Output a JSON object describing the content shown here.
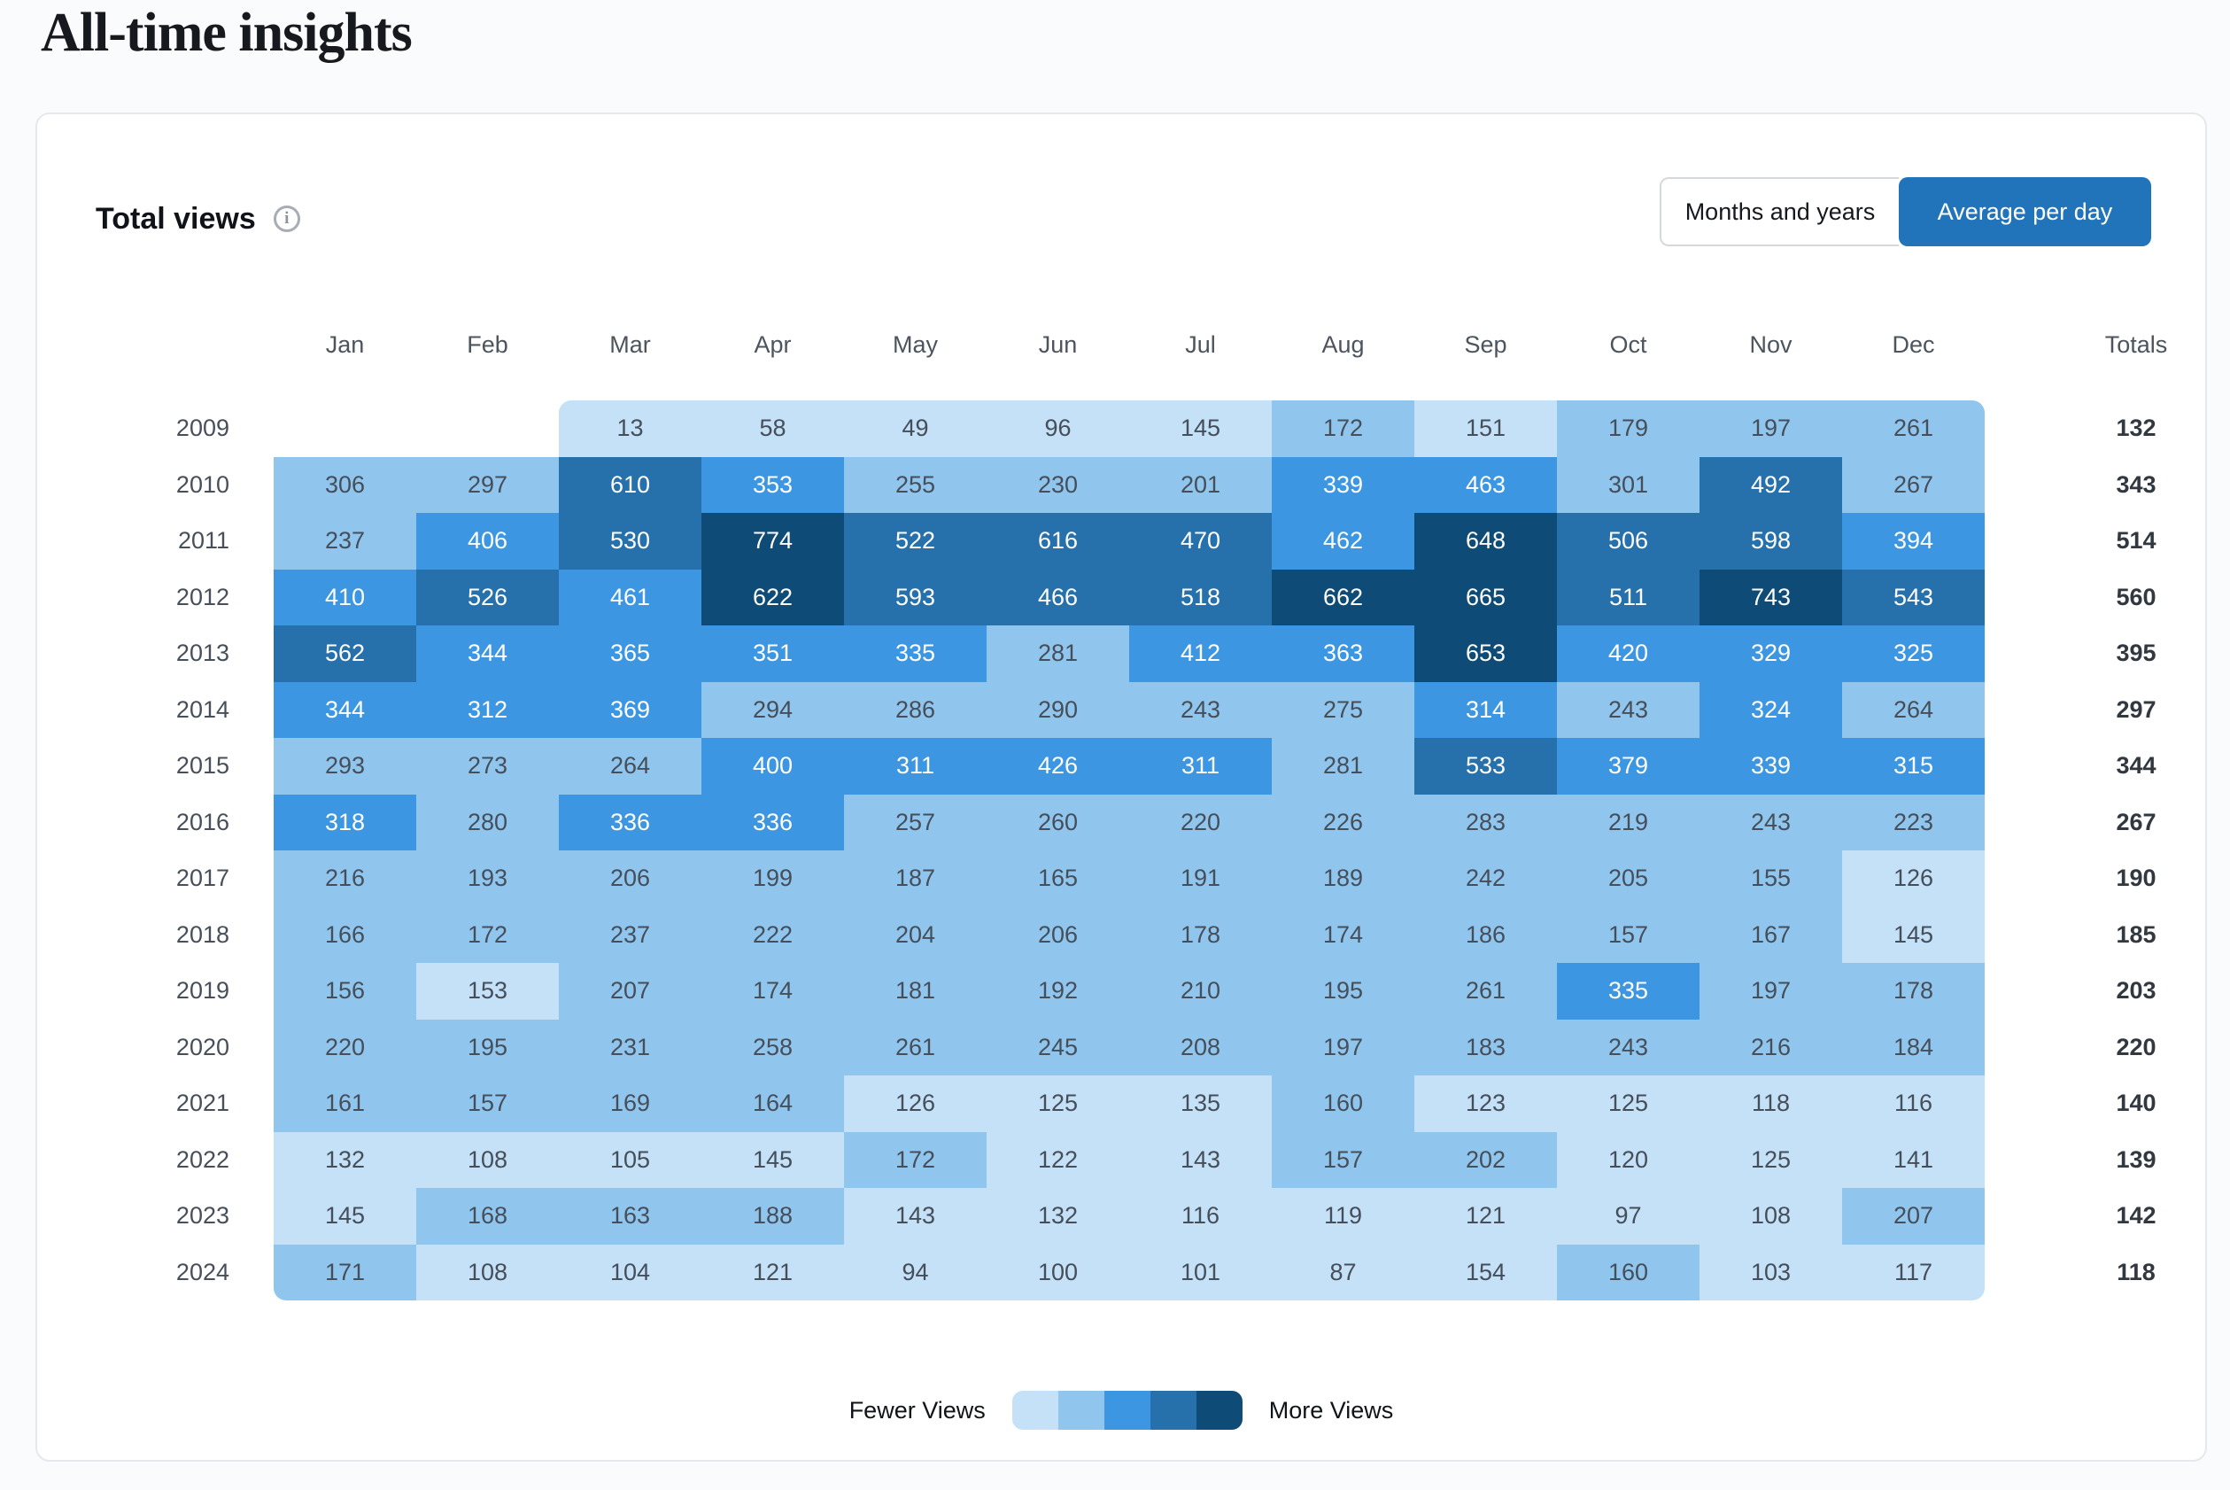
{
  "page_title": "All-time insights",
  "panel": {
    "heading": "Total views",
    "info_icon_glyph": "i",
    "toggle": {
      "options": [
        "Months and years",
        "Average per day"
      ],
      "active": "Average per day"
    }
  },
  "colors": {
    "accent": "#2174ba",
    "card_border": "#e5e8ec"
  },
  "chart_data": {
    "type": "heatmap",
    "title": "Total views",
    "active_view": "Average per day",
    "columns": [
      "Jan",
      "Feb",
      "Mar",
      "Apr",
      "May",
      "Jun",
      "Jul",
      "Aug",
      "Sep",
      "Oct",
      "Nov",
      "Dec"
    ],
    "totals_label": "Totals",
    "rows": [
      {
        "year": "2009",
        "values": [
          null,
          null,
          13,
          58,
          49,
          96,
          145,
          172,
          151,
          179,
          197,
          261
        ],
        "total": 132
      },
      {
        "year": "2010",
        "values": [
          306,
          297,
          610,
          353,
          255,
          230,
          201,
          339,
          463,
          301,
          492,
          267
        ],
        "total": 343
      },
      {
        "year": "2011",
        "values": [
          237,
          406,
          530,
          774,
          522,
          616,
          470,
          462,
          648,
          506,
          598,
          394
        ],
        "total": 514
      },
      {
        "year": "2012",
        "values": [
          410,
          526,
          461,
          622,
          593,
          466,
          518,
          662,
          665,
          511,
          743,
          543
        ],
        "total": 560
      },
      {
        "year": "2013",
        "values": [
          562,
          344,
          365,
          351,
          335,
          281,
          412,
          363,
          653,
          420,
          329,
          325
        ],
        "total": 395
      },
      {
        "year": "2014",
        "values": [
          344,
          312,
          369,
          294,
          286,
          290,
          243,
          275,
          314,
          243,
          324,
          264
        ],
        "total": 297
      },
      {
        "year": "2015",
        "values": [
          293,
          273,
          264,
          400,
          311,
          426,
          311,
          281,
          533,
          379,
          339,
          315
        ],
        "total": 344
      },
      {
        "year": "2016",
        "values": [
          318,
          280,
          336,
          336,
          257,
          260,
          220,
          226,
          283,
          219,
          243,
          223
        ],
        "total": 267
      },
      {
        "year": "2017",
        "values": [
          216,
          193,
          206,
          199,
          187,
          165,
          191,
          189,
          242,
          205,
          155,
          126
        ],
        "total": 190
      },
      {
        "year": "2018",
        "values": [
          166,
          172,
          237,
          222,
          204,
          206,
          178,
          174,
          186,
          157,
          167,
          145
        ],
        "total": 185
      },
      {
        "year": "2019",
        "values": [
          156,
          153,
          207,
          174,
          181,
          192,
          210,
          195,
          261,
          335,
          197,
          178
        ],
        "total": 203
      },
      {
        "year": "2020",
        "values": [
          220,
          195,
          231,
          258,
          261,
          245,
          208,
          197,
          183,
          243,
          216,
          184
        ],
        "total": 220
      },
      {
        "year": "2021",
        "values": [
          161,
          157,
          169,
          164,
          126,
          125,
          135,
          160,
          123,
          125,
          118,
          116
        ],
        "total": 140
      },
      {
        "year": "2022",
        "values": [
          132,
          108,
          105,
          145,
          172,
          122,
          143,
          157,
          202,
          120,
          125,
          141
        ],
        "total": 139
      },
      {
        "year": "2023",
        "values": [
          145,
          168,
          163,
          188,
          143,
          132,
          116,
          119,
          121,
          97,
          108,
          207
        ],
        "total": 142
      },
      {
        "year": "2024",
        "values": [
          171,
          108,
          104,
          121,
          94,
          100,
          101,
          87,
          154,
          160,
          103,
          117
        ],
        "total": 118
      }
    ],
    "legend": {
      "low_label": "Fewer Views",
      "high_label": "More Views"
    },
    "color_scale": [
      "#c4e1f7",
      "#90c6ee",
      "#3d96e1",
      "#2670ac",
      "#0e4b76"
    ],
    "level_thresholds": [
      155,
      310,
      465,
      620
    ],
    "grid": false,
    "legend_position": "bottom-center"
  }
}
